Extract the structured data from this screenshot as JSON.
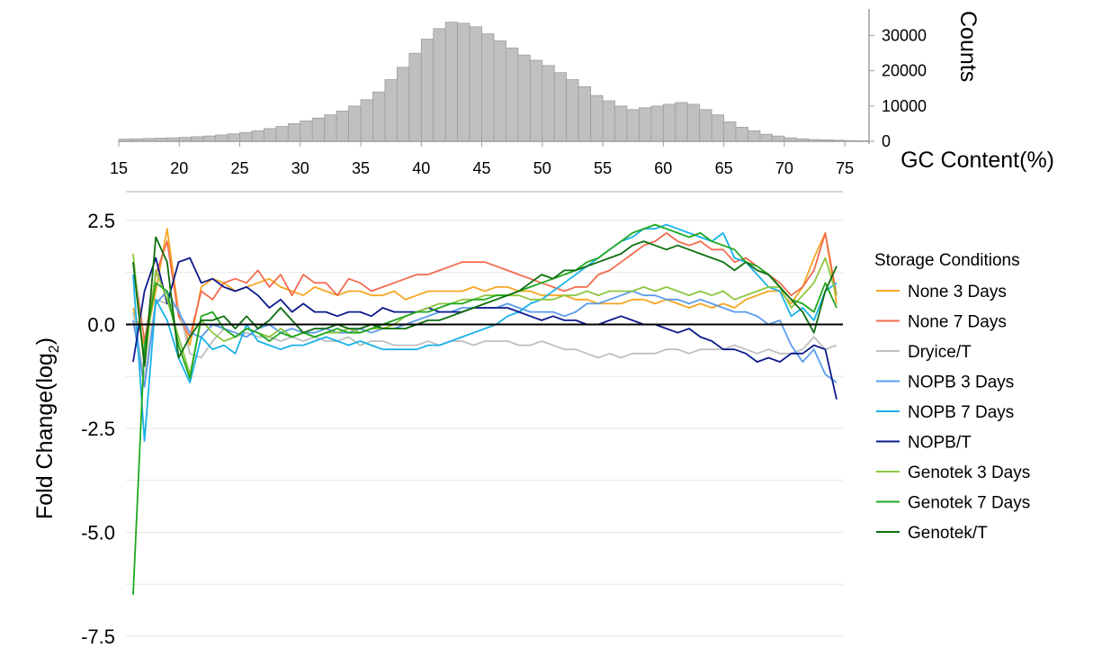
{
  "chart_data": [
    {
      "type": "bar",
      "xlabel": "GC Content(%)",
      "ylabel": "Counts",
      "xlim": [
        15,
        77
      ],
      "ylim": [
        0,
        35000
      ],
      "x_ticks": [
        15,
        20,
        25,
        30,
        35,
        40,
        45,
        50,
        55,
        60,
        65,
        70,
        75
      ],
      "y_ticks": [
        0,
        10000,
        20000,
        30000
      ],
      "bin_start": 15,
      "bin_width": 1,
      "colors": {
        "bar": "#c0c0c0",
        "bar_edge": "#9e9e9e",
        "axis": "#9e9e9e"
      },
      "values": [
        600,
        700,
        800,
        900,
        1000,
        1100,
        1300,
        1500,
        1800,
        2100,
        2500,
        3000,
        3600,
        4200,
        5000,
        5800,
        6600,
        7500,
        8600,
        10000,
        11800,
        14000,
        17500,
        21000,
        25000,
        29000,
        32000,
        33800,
        33500,
        32500,
        30500,
        28500,
        26500,
        24500,
        23000,
        21500,
        19500,
        17500,
        15500,
        13000,
        11500,
        10000,
        9000,
        9500,
        10000,
        10500,
        11000,
        10500,
        9000,
        7500,
        5500,
        4000,
        3000,
        2000,
        1500,
        1000,
        700,
        500,
        400,
        300,
        200,
        150
      ]
    },
    {
      "type": "line",
      "ylabel": "Fold Change(log",
      "ylabel_sub": "2",
      "ylabel_close": ")",
      "ylim": [
        -7.5,
        2.5
      ],
      "y_ticks": [
        2.5,
        0.0,
        -2.5,
        -5.0,
        -7.5
      ],
      "y_tick_labels": [
        "2.5",
        "0.0",
        "-2.5",
        "-5.0",
        "-7.5"
      ],
      "x_start": 15,
      "x_end": 77,
      "legend_title": "Storage Conditions",
      "legend_position": "right",
      "grid": true,
      "series": [
        {
          "name": "None 3 Days",
          "color": "#f5a623",
          "values": [
            0.4,
            -0.5,
            0.8,
            2.3,
            0.3,
            -0.5,
            0.9,
            1.1,
            1.0,
            0.8,
            0.9,
            1.0,
            1.1,
            0.9,
            0.8,
            0.7,
            0.9,
            0.8,
            0.7,
            0.8,
            0.8,
            0.7,
            0.7,
            0.8,
            0.6,
            0.7,
            0.8,
            0.8,
            0.8,
            0.8,
            0.9,
            0.8,
            0.9,
            0.9,
            0.8,
            0.8,
            0.7,
            0.7,
            0.7,
            0.6,
            0.6,
            0.5,
            0.5,
            0.5,
            0.6,
            0.6,
            0.5,
            0.6,
            0.5,
            0.4,
            0.5,
            0.4,
            0.5,
            0.4,
            0.6,
            0.7,
            0.8,
            0.8,
            0.5,
            0.9,
            1.6,
            2.2,
            0.5
          ]
        },
        {
          "name": "None 7 Days",
          "color": "#f26c4f",
          "values": [
            1.5,
            -0.4,
            1.2,
            2.0,
            0.2,
            -0.3,
            0.8,
            0.6,
            1.0,
            1.1,
            1.0,
            1.3,
            0.9,
            1.2,
            0.7,
            1.2,
            1.0,
            1.0,
            0.7,
            1.1,
            1.0,
            0.8,
            0.9,
            1.0,
            1.1,
            1.2,
            1.2,
            1.3,
            1.4,
            1.5,
            1.5,
            1.5,
            1.4,
            1.3,
            1.2,
            1.1,
            1.0,
            0.9,
            0.8,
            0.9,
            0.9,
            1.2,
            1.3,
            1.5,
            1.7,
            1.9,
            2.0,
            2.2,
            2.0,
            1.9,
            2.0,
            1.8,
            1.8,
            1.5,
            1.6,
            1.4,
            1.2,
            1.0,
            0.7,
            0.9,
            1.3,
            2.2,
            0.7
          ]
        },
        {
          "name": "Dryice/T",
          "color": "#bfbfbf",
          "values": [
            0.3,
            -1.3,
            0.6,
            0.5,
            0.4,
            -0.7,
            -0.8,
            -0.4,
            -0.1,
            -0.3,
            -0.2,
            -0.3,
            -0.3,
            -0.4,
            -0.3,
            -0.4,
            -0.3,
            -0.4,
            -0.4,
            -0.3,
            -0.5,
            -0.4,
            -0.4,
            -0.5,
            -0.5,
            -0.5,
            -0.4,
            -0.5,
            -0.4,
            -0.4,
            -0.5,
            -0.4,
            -0.4,
            -0.4,
            -0.5,
            -0.5,
            -0.4,
            -0.5,
            -0.6,
            -0.6,
            -0.7,
            -0.8,
            -0.7,
            -0.8,
            -0.7,
            -0.7,
            -0.7,
            -0.6,
            -0.6,
            -0.7,
            -0.6,
            -0.6,
            -0.6,
            -0.5,
            -0.6,
            -0.7,
            -0.6,
            -0.7,
            -0.7,
            -0.6,
            -0.3,
            -0.6,
            -0.5
          ]
        },
        {
          "name": "NOPB 3 Days",
          "color": "#5b9bea",
          "values": [
            0.1,
            -1.5,
            0.5,
            0.8,
            0.3,
            -0.2,
            -0.3,
            0.0,
            -0.1,
            -0.2,
            -0.3,
            -0.1,
            0.0,
            -0.2,
            -0.1,
            -0.2,
            -0.2,
            -0.1,
            -0.2,
            -0.2,
            -0.1,
            -0.2,
            -0.1,
            -0.1,
            0.0,
            0.1,
            0.2,
            0.3,
            0.3,
            0.4,
            0.4,
            0.4,
            0.4,
            0.5,
            0.4,
            0.3,
            0.3,
            0.3,
            0.2,
            0.3,
            0.5,
            0.5,
            0.6,
            0.7,
            0.8,
            0.7,
            0.7,
            0.6,
            0.6,
            0.5,
            0.6,
            0.5,
            0.4,
            0.3,
            0.3,
            0.2,
            0.0,
            0.1,
            -0.5,
            -0.9,
            -0.6,
            -1.2,
            -1.4
          ]
        },
        {
          "name": "NOPB 7 Days",
          "color": "#1ab2e8",
          "values": [
            1.2,
            -2.8,
            0.6,
            0.1,
            -0.8,
            -1.4,
            -0.3,
            -0.6,
            -0.5,
            -0.7,
            0.0,
            -0.4,
            -0.5,
            -0.6,
            -0.5,
            -0.5,
            -0.4,
            -0.3,
            -0.4,
            -0.5,
            -0.4,
            -0.5,
            -0.6,
            -0.6,
            -0.6,
            -0.6,
            -0.5,
            -0.5,
            -0.4,
            -0.3,
            -0.2,
            -0.1,
            0.0,
            0.2,
            0.3,
            0.5,
            0.6,
            0.8,
            1.0,
            1.2,
            1.4,
            1.6,
            1.8,
            2.0,
            2.1,
            2.3,
            2.3,
            2.4,
            2.3,
            2.2,
            2.1,
            2.0,
            2.2,
            1.6,
            1.5,
            1.2,
            0.9,
            0.8,
            0.2,
            0.4,
            0.1,
            0.8,
            1.0
          ]
        },
        {
          "name": "NOPB/T",
          "color": "#0c1a8c",
          "values": [
            -0.9,
            0.8,
            1.6,
            0.5,
            1.5,
            1.6,
            1.0,
            1.1,
            0.9,
            0.8,
            0.9,
            0.7,
            0.4,
            0.6,
            0.3,
            0.5,
            0.3,
            0.3,
            0.2,
            0.3,
            0.3,
            0.2,
            0.4,
            0.3,
            0.3,
            0.3,
            0.4,
            0.3,
            0.3,
            0.3,
            0.4,
            0.4,
            0.4,
            0.4,
            0.3,
            0.2,
            0.1,
            0.2,
            0.1,
            0.1,
            0.0,
            0.0,
            0.1,
            0.2,
            0.1,
            0.0,
            0.0,
            -0.1,
            -0.2,
            -0.1,
            -0.3,
            -0.4,
            -0.6,
            -0.6,
            -0.7,
            -0.9,
            -0.8,
            -0.9,
            -0.7,
            -0.7,
            -0.5,
            -0.6,
            -1.8
          ]
        },
        {
          "name": "Genotek 3 Days",
          "color": "#8dc63f",
          "values": [
            1.7,
            -1.0,
            1.3,
            0.6,
            -0.3,
            -1.2,
            0.1,
            -0.2,
            -0.4,
            -0.3,
            -0.1,
            -0.2,
            -0.3,
            -0.1,
            -0.3,
            -0.2,
            -0.3,
            -0.2,
            -0.2,
            -0.1,
            -0.2,
            -0.1,
            -0.1,
            0.0,
            0.2,
            0.3,
            0.4,
            0.5,
            0.5,
            0.6,
            0.6,
            0.7,
            0.7,
            0.7,
            0.7,
            0.6,
            0.6,
            0.6,
            0.7,
            0.7,
            0.8,
            0.7,
            0.8,
            0.8,
            0.8,
            0.9,
            0.8,
            0.9,
            0.8,
            0.7,
            0.8,
            0.7,
            0.8,
            0.6,
            0.7,
            0.8,
            0.9,
            0.9,
            0.4,
            0.7,
            1.0,
            1.6,
            0.7
          ]
        },
        {
          "name": "Genotek 7 Days",
          "color": "#1fa81f",
          "values": [
            -6.5,
            -0.5,
            1.0,
            0.8,
            -0.5,
            -1.3,
            0.2,
            0.3,
            -0.1,
            -0.3,
            -0.1,
            -0.2,
            -0.4,
            -0.2,
            -0.3,
            -0.2,
            -0.3,
            -0.2,
            -0.1,
            -0.2,
            -0.2,
            -0.1,
            0.0,
            0.1,
            0.2,
            0.3,
            0.3,
            0.4,
            0.5,
            0.5,
            0.6,
            0.6,
            0.7,
            0.7,
            0.8,
            0.9,
            1.0,
            1.1,
            1.2,
            1.3,
            1.5,
            1.6,
            1.8,
            2.0,
            2.2,
            2.3,
            2.4,
            2.3,
            2.2,
            2.1,
            2.2,
            2.0,
            1.9,
            1.8,
            1.5,
            1.4,
            1.2,
            0.9,
            0.6,
            0.5,
            0.3,
            1.0,
            0.4
          ]
        },
        {
          "name": "Genotek/T",
          "color": "#0e6e0e",
          "values": [
            1.5,
            -1.0,
            2.1,
            1.5,
            -0.8,
            -0.3,
            0.1,
            0.1,
            0.2,
            -0.1,
            0.2,
            -0.1,
            0.1,
            0.4,
            0.1,
            -0.2,
            -0.1,
            -0.1,
            0.0,
            -0.1,
            -0.1,
            0.0,
            -0.1,
            -0.1,
            -0.1,
            0.0,
            0.1,
            0.1,
            0.2,
            0.3,
            0.4,
            0.5,
            0.6,
            0.7,
            0.8,
            1.0,
            1.2,
            1.1,
            1.3,
            1.3,
            1.4,
            1.5,
            1.6,
            1.7,
            1.9,
            2.0,
            1.9,
            1.8,
            1.9,
            1.8,
            1.7,
            1.6,
            1.5,
            1.3,
            1.5,
            1.3,
            1.2,
            0.9,
            0.6,
            0.3,
            -0.2,
            0.8,
            1.4
          ]
        }
      ]
    }
  ]
}
